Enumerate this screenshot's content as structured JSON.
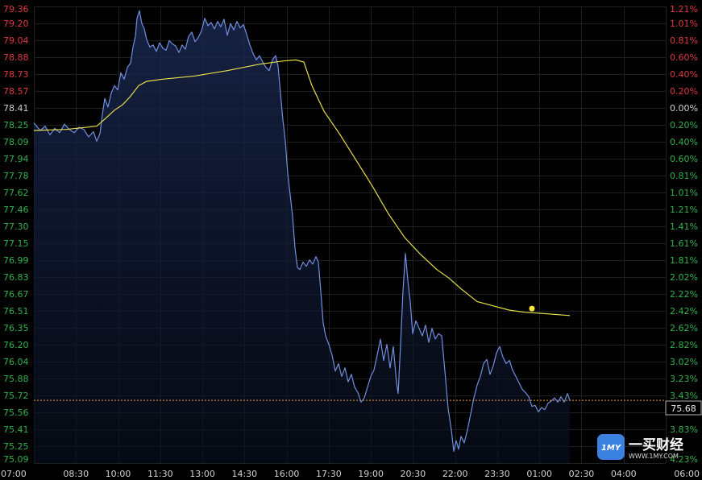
{
  "colors": {
    "background": "#000000",
    "grid": "#1f1f1f",
    "price_line": "#6f8fe0",
    "area_fill": "#16213f",
    "avg_line": "#e6df4a",
    "up": "#e0393e",
    "down": "#2fb24a",
    "neutral": "#d0d0d0",
    "last_line": "#e8a040"
  },
  "last_price_label": "75.68",
  "logo": {
    "name": "一买财经",
    "url": "WWW.1MY.COM",
    "badge": "1MY"
  },
  "chart_data": {
    "type": "line",
    "title": "",
    "xlabel": "",
    "ylabel": "",
    "prev_close": 78.41,
    "last_price": 75.68,
    "ylim": [
      75.09,
      79.36
    ],
    "grid": true,
    "x_ticks": [
      "07:00",
      "08:30",
      "10:00",
      "11:30",
      "13:00",
      "14:30",
      "16:00",
      "17:30",
      "19:00",
      "20:30",
      "22:00",
      "23:30",
      "01:00",
      "02:30",
      "04:00",
      "06:00"
    ],
    "y_ticks_left": [
      "79.36",
      "79.20",
      "79.04",
      "78.88",
      "78.73",
      "78.57",
      "78.41",
      "78.25",
      "78.09",
      "77.94",
      "77.78",
      "77.62",
      "77.46",
      "77.30",
      "77.15",
      "76.99",
      "76.83",
      "76.67",
      "76.51",
      "76.35",
      "76.20",
      "76.04",
      "75.88",
      "75.72",
      "75.56",
      "75.41",
      "75.25",
      "75.09"
    ],
    "y_ticks_right": [
      "1.21%",
      "1.01%",
      "0.81%",
      "0.60%",
      "0.40%",
      "0.20%",
      "0.00%",
      "0.20%",
      "0.40%",
      "0.60%",
      "0.81%",
      "1.01%",
      "1.21%",
      "1.41%",
      "1.61%",
      "1.81%",
      "2.02%",
      "2.22%",
      "2.42%",
      "2.62%",
      "2.82%",
      "3.02%",
      "3.23%",
      "3.43%",
      "",
      "3.83%",
      "",
      "4.23%"
    ],
    "series": [
      {
        "kind": "price",
        "points": [
          [
            0,
            78.27
          ],
          [
            8,
            78.2
          ],
          [
            14,
            78.24
          ],
          [
            20,
            78.16
          ],
          [
            26,
            78.22
          ],
          [
            32,
            78.18
          ],
          [
            38,
            78.26
          ],
          [
            44,
            78.21
          ],
          [
            50,
            78.18
          ],
          [
            56,
            78.23
          ],
          [
            62,
            78.21
          ],
          [
            68,
            78.14
          ],
          [
            74,
            78.19
          ],
          [
            78,
            78.1
          ],
          [
            82,
            78.17
          ],
          [
            85,
            78.35
          ],
          [
            88,
            78.5
          ],
          [
            92,
            78.42
          ],
          [
            96,
            78.55
          ],
          [
            100,
            78.62
          ],
          [
            104,
            78.58
          ],
          [
            108,
            78.74
          ],
          [
            112,
            78.68
          ],
          [
            116,
            78.79
          ],
          [
            120,
            78.83
          ],
          [
            123,
            78.98
          ],
          [
            126,
            79.08
          ],
          [
            128,
            79.25
          ],
          [
            131,
            79.32
          ],
          [
            134,
            79.2
          ],
          [
            137,
            79.15
          ],
          [
            140,
            79.05
          ],
          [
            144,
            78.98
          ],
          [
            148,
            79.0
          ],
          [
            152,
            78.94
          ],
          [
            156,
            79.02
          ],
          [
            160,
            78.97
          ],
          [
            164,
            78.95
          ],
          [
            168,
            79.04
          ],
          [
            172,
            79.01
          ],
          [
            176,
            78.99
          ],
          [
            180,
            78.93
          ],
          [
            184,
            79.0
          ],
          [
            188,
            78.96
          ],
          [
            192,
            79.08
          ],
          [
            196,
            79.12
          ],
          [
            200,
            79.03
          ],
          [
            204,
            79.07
          ],
          [
            208,
            79.13
          ],
          [
            212,
            79.25
          ],
          [
            216,
            79.18
          ],
          [
            220,
            79.21
          ],
          [
            224,
            79.15
          ],
          [
            228,
            79.22
          ],
          [
            232,
            79.17
          ],
          [
            236,
            79.24
          ],
          [
            240,
            79.09
          ],
          [
            244,
            79.2
          ],
          [
            248,
            79.14
          ],
          [
            252,
            79.22
          ],
          [
            256,
            79.16
          ],
          [
            260,
            79.19
          ],
          [
            264,
            79.1
          ],
          [
            268,
            79.0
          ],
          [
            272,
            78.92
          ],
          [
            276,
            78.86
          ],
          [
            280,
            78.9
          ],
          [
            284,
            78.84
          ],
          [
            288,
            78.79
          ],
          [
            292,
            78.76
          ],
          [
            296,
            78.86
          ],
          [
            300,
            78.9
          ],
          [
            303,
            78.8
          ],
          [
            306,
            78.55
          ],
          [
            309,
            78.3
          ],
          [
            312,
            78.1
          ],
          [
            315,
            77.8
          ],
          [
            318,
            77.6
          ],
          [
            321,
            77.4
          ],
          [
            324,
            77.1
          ],
          [
            327,
            76.92
          ],
          [
            330,
            76.9
          ],
          [
            334,
            76.97
          ],
          [
            338,
            76.93
          ],
          [
            342,
            76.99
          ],
          [
            346,
            76.95
          ],
          [
            350,
            77.02
          ],
          [
            353,
            76.97
          ],
          [
            356,
            76.7
          ],
          [
            359,
            76.4
          ],
          [
            362,
            76.28
          ],
          [
            366,
            76.2
          ],
          [
            370,
            76.1
          ],
          [
            374,
            75.95
          ],
          [
            378,
            76.02
          ],
          [
            382,
            75.9
          ],
          [
            386,
            75.98
          ],
          [
            390,
            75.85
          ],
          [
            394,
            75.92
          ],
          [
            398,
            75.8
          ],
          [
            402,
            75.75
          ],
          [
            406,
            75.66
          ],
          [
            410,
            75.7
          ],
          [
            414,
            75.8
          ],
          [
            418,
            75.9
          ],
          [
            422,
            75.96
          ],
          [
            426,
            76.1
          ],
          [
            430,
            76.25
          ],
          [
            434,
            76.05
          ],
          [
            438,
            76.2
          ],
          [
            442,
            75.98
          ],
          [
            446,
            76.18
          ],
          [
            450,
            75.84
          ],
          [
            452,
            75.74
          ],
          [
            455,
            76.2
          ],
          [
            458,
            76.7
          ],
          [
            461,
            77.05
          ],
          [
            464,
            76.8
          ],
          [
            467,
            76.6
          ],
          [
            470,
            76.3
          ],
          [
            474,
            76.42
          ],
          [
            478,
            76.35
          ],
          [
            482,
            76.28
          ],
          [
            486,
            76.38
          ],
          [
            490,
            76.22
          ],
          [
            494,
            76.35
          ],
          [
            498,
            76.25
          ],
          [
            502,
            76.3
          ],
          [
            506,
            76.28
          ],
          [
            510,
            75.95
          ],
          [
            514,
            75.6
          ],
          [
            518,
            75.4
          ],
          [
            521,
            75.2
          ],
          [
            524,
            75.3
          ],
          [
            527,
            75.22
          ],
          [
            530,
            75.34
          ],
          [
            534,
            75.28
          ],
          [
            538,
            75.4
          ],
          [
            542,
            75.55
          ],
          [
            546,
            75.7
          ],
          [
            550,
            75.82
          ],
          [
            554,
            75.9
          ],
          [
            558,
            76.02
          ],
          [
            562,
            76.06
          ],
          [
            566,
            75.92
          ],
          [
            570,
            76.0
          ],
          [
            574,
            76.12
          ],
          [
            578,
            76.18
          ],
          [
            582,
            76.08
          ],
          [
            586,
            76.02
          ],
          [
            590,
            76.05
          ],
          [
            594,
            75.96
          ],
          [
            598,
            75.9
          ],
          [
            602,
            75.84
          ],
          [
            606,
            75.78
          ],
          [
            610,
            75.75
          ],
          [
            614,
            75.71
          ],
          [
            618,
            75.62
          ],
          [
            622,
            75.63
          ],
          [
            626,
            75.57
          ],
          [
            630,
            75.61
          ],
          [
            634,
            75.59
          ],
          [
            638,
            75.65
          ],
          [
            642,
            75.67
          ],
          [
            646,
            75.7
          ],
          [
            650,
            75.66
          ],
          [
            654,
            75.71
          ],
          [
            658,
            75.66
          ],
          [
            662,
            75.74
          ],
          [
            665,
            75.68
          ]
        ]
      },
      {
        "kind": "average",
        "points": [
          [
            0,
            78.2
          ],
          [
            40,
            78.21
          ],
          [
            78,
            78.24
          ],
          [
            90,
            78.32
          ],
          [
            100,
            78.39
          ],
          [
            110,
            78.44
          ],
          [
            120,
            78.52
          ],
          [
            130,
            78.62
          ],
          [
            140,
            78.66
          ],
          [
            160,
            78.68
          ],
          [
            200,
            78.71
          ],
          [
            240,
            78.76
          ],
          [
            280,
            78.82
          ],
          [
            310,
            78.85
          ],
          [
            325,
            78.86
          ],
          [
            335,
            78.84
          ],
          [
            345,
            78.62
          ],
          [
            360,
            78.38
          ],
          [
            380,
            78.16
          ],
          [
            400,
            77.92
          ],
          [
            420,
            77.68
          ],
          [
            440,
            77.42
          ],
          [
            460,
            77.2
          ],
          [
            480,
            77.04
          ],
          [
            500,
            76.9
          ],
          [
            515,
            76.82
          ],
          [
            530,
            76.72
          ],
          [
            550,
            76.6
          ],
          [
            570,
            76.56
          ],
          [
            590,
            76.52
          ],
          [
            610,
            76.5
          ],
          [
            630,
            76.49
          ],
          [
            665,
            76.47
          ]
        ]
      }
    ],
    "marker": [
      618,
      76.535
    ]
  }
}
